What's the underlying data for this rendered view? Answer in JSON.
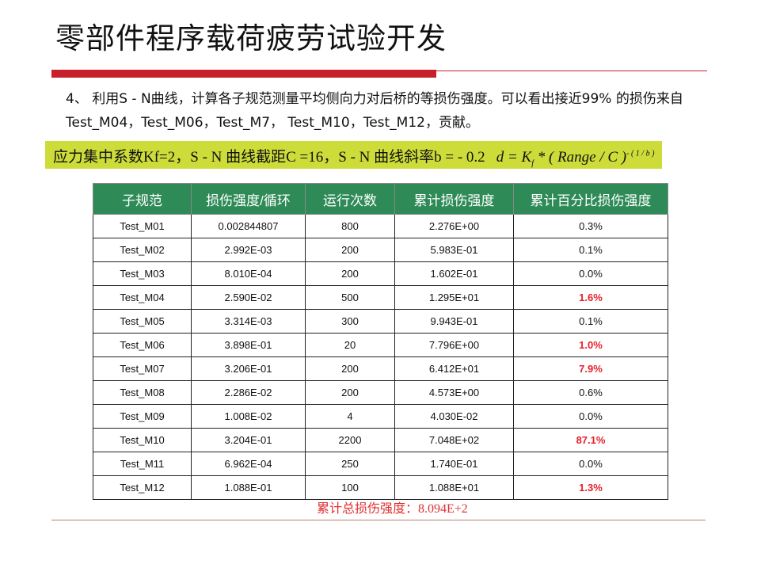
{
  "title": "零部件程序载荷疲劳试验开发",
  "paragraph": "4、 利用S - N曲线，计算各子规范测量平均侧向力对后桥的等损伤强度。可以看出接近99% 的损伤来自Test_M04，Test_M06，Test_M7， Test_M10，Test_M12，贡献。",
  "highlight": {
    "text": "应力集中系数Kf=2，S - N 曲线截距C =16，S - N 曲线斜率b = - 0.2",
    "formula_main": "d = K",
    "formula_sub": "f",
    "formula_rest": " * ( Range   / C )",
    "formula_exp": "- ( 1 / b )"
  },
  "table": {
    "headers": [
      "子规范",
      "损伤强度/循环",
      "运行次数",
      "累计损伤强度",
      "累计百分比损伤强度"
    ],
    "rows": [
      [
        "Test_M01",
        "0.002844807",
        "800",
        "2.276E+00",
        "0.3%"
      ],
      [
        "Test_M02",
        "2.992E-03",
        "200",
        "5.983E-01",
        "0.1%"
      ],
      [
        "Test_M03",
        "8.010E-04",
        "200",
        "1.602E-01",
        "0.0%"
      ],
      [
        "Test_M04",
        "2.590E-02",
        "500",
        "1.295E+01",
        "1.6%"
      ],
      [
        "Test_M05",
        "3.314E-03",
        "300",
        "9.943E-01",
        "0.1%"
      ],
      [
        "Test_M06",
        "3.898E-01",
        "20",
        "7.796E+00",
        "1.0%"
      ],
      [
        "Test_M07",
        "3.206E-01",
        "200",
        "6.412E+01",
        "7.9%"
      ],
      [
        "Test_M08",
        "2.286E-02",
        "200",
        "4.573E+00",
        "0.6%"
      ],
      [
        "Test_M09",
        "1.008E-02",
        "4",
        "4.030E-02",
        "0.0%"
      ],
      [
        "Test_M10",
        "3.204E-01",
        "2200",
        "7.048E+02",
        "87.1%"
      ],
      [
        "Test_M11",
        "6.962E-04",
        "250",
        "1.740E-01",
        "0.0%"
      ],
      [
        "Test_M12",
        "1.088E-01",
        "100",
        "1.088E+01",
        "1.3%"
      ]
    ],
    "highlighted_rows": [
      3,
      5,
      6,
      9,
      11
    ]
  },
  "total": "累计总损伤强度：8.094E+2",
  "colors": {
    "accent_red": "#c8202a",
    "header_green": "#2e8b57",
    "highlight": "#cddc39",
    "emphasis": "#e8202a"
  }
}
